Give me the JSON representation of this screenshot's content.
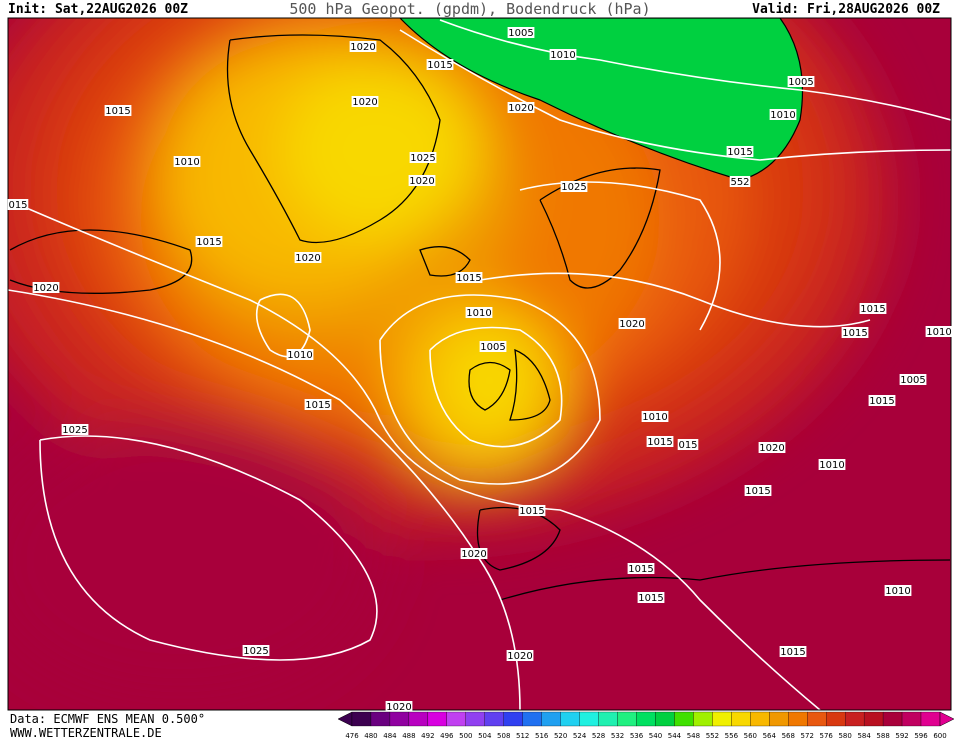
{
  "header": {
    "init": "Init: Sat,22AUG2026 00Z",
    "title": "500 hPa Geopot. (gpdm), Bodendruck (hPa)",
    "valid": "Valid: Fri,28AUG2026 00Z"
  },
  "footer": {
    "source": "Data: ECMWF ENS MEAN 0.500°",
    "site": "WWW.WETTERZENTRALE.DE"
  },
  "isobar_labels": [
    "1020",
    "1015",
    "1005",
    "1010",
    "1005",
    "1010",
    "1015",
    "552",
    "1015",
    "1010",
    "1020",
    "1020",
    "1025",
    "1020",
    "1025",
    "015",
    "1015",
    "1020",
    "1020",
    "1015",
    "1010",
    "1005",
    "1010",
    "1015",
    "1020",
    "1015",
    "1015",
    "1010",
    "1005",
    "1015",
    "1010",
    "1015",
    "015",
    "1020",
    "1010",
    "1015",
    "1025",
    "1015",
    "1020",
    "1015",
    "1015",
    "1010",
    "1025",
    "1020",
    "1015",
    "1020"
  ],
  "scale": {
    "labels": [
      476,
      480,
      484,
      488,
      492,
      496,
      500,
      504,
      508,
      512,
      516,
      520,
      524,
      528,
      532,
      536,
      540,
      544,
      548,
      552,
      556,
      560,
      564,
      568,
      572,
      576,
      580,
      584,
      588,
      592,
      596,
      600
    ],
    "colors": [
      "#3c0050",
      "#6a0080",
      "#9000a0",
      "#b800c0",
      "#d800e0",
      "#c040f0",
      "#9040f0",
      "#6040f0",
      "#3040f0",
      "#2070f0",
      "#20a0f0",
      "#20d0f0",
      "#20f0e0",
      "#20f0b0",
      "#20f080",
      "#00e060",
      "#00d040",
      "#40e000",
      "#a0f000",
      "#f0f000",
      "#f8d800",
      "#f8b800",
      "#f09800",
      "#f07800",
      "#e85810",
      "#d83810",
      "#c82020",
      "#b81020",
      "#a8003a",
      "#c00060",
      "#e00090"
    ]
  }
}
